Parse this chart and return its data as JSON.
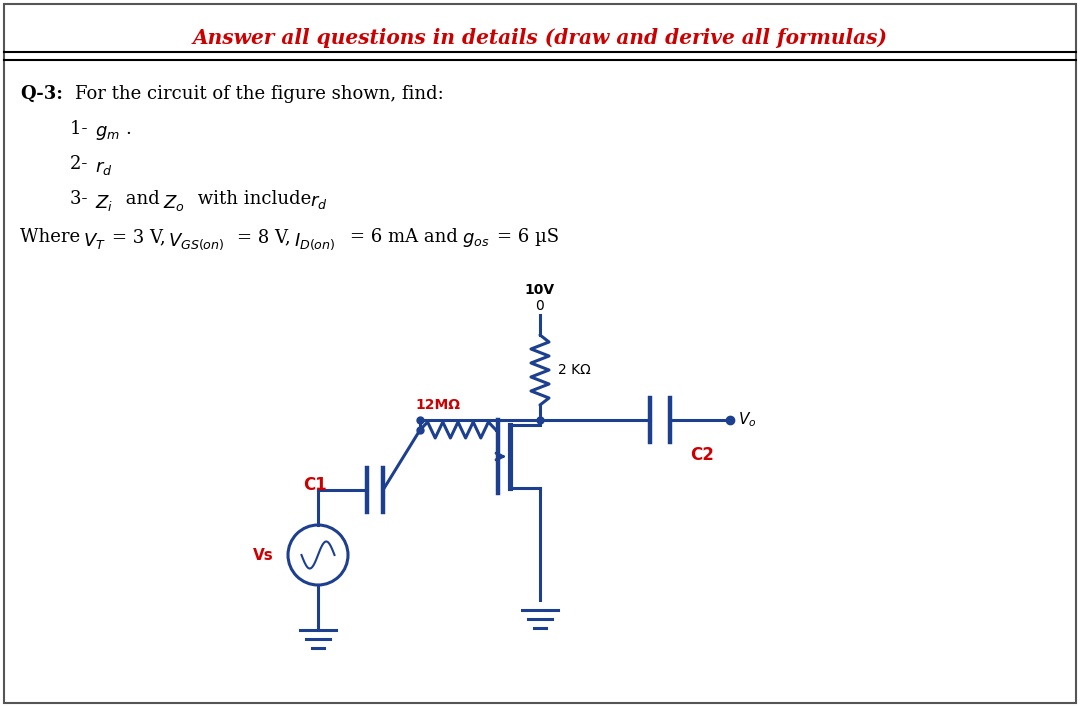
{
  "title": "Answer all questions in details (draw and derive all formulas)",
  "title_color": "#cc0000",
  "bg_color": "#ffffff",
  "border_color": "#000000",
  "q_label": "Q-3:",
  "q_text": " For the circuit of the figure shown, find:",
  "item1": "1- ",
  "item1_math": "g_{m}",
  "item2": "2- ",
  "item2_math": "r_{d}",
  "item3": "3-  Z",
  "item3b": " and Z",
  "item3c": " with include r",
  "params_pre": "Where V",
  "params_text": " = 3 V, V",
  "circuit_color": "#1c3f8f",
  "label_color": "#cc0000",
  "vdd_label": "10V",
  "zero_label": "0",
  "rd_label": "2 KΩ",
  "rg_label": "12MΩ",
  "c1_label": "C1",
  "c2_label": "C2",
  "vs_label": "Vs",
  "vo_label": "V"
}
